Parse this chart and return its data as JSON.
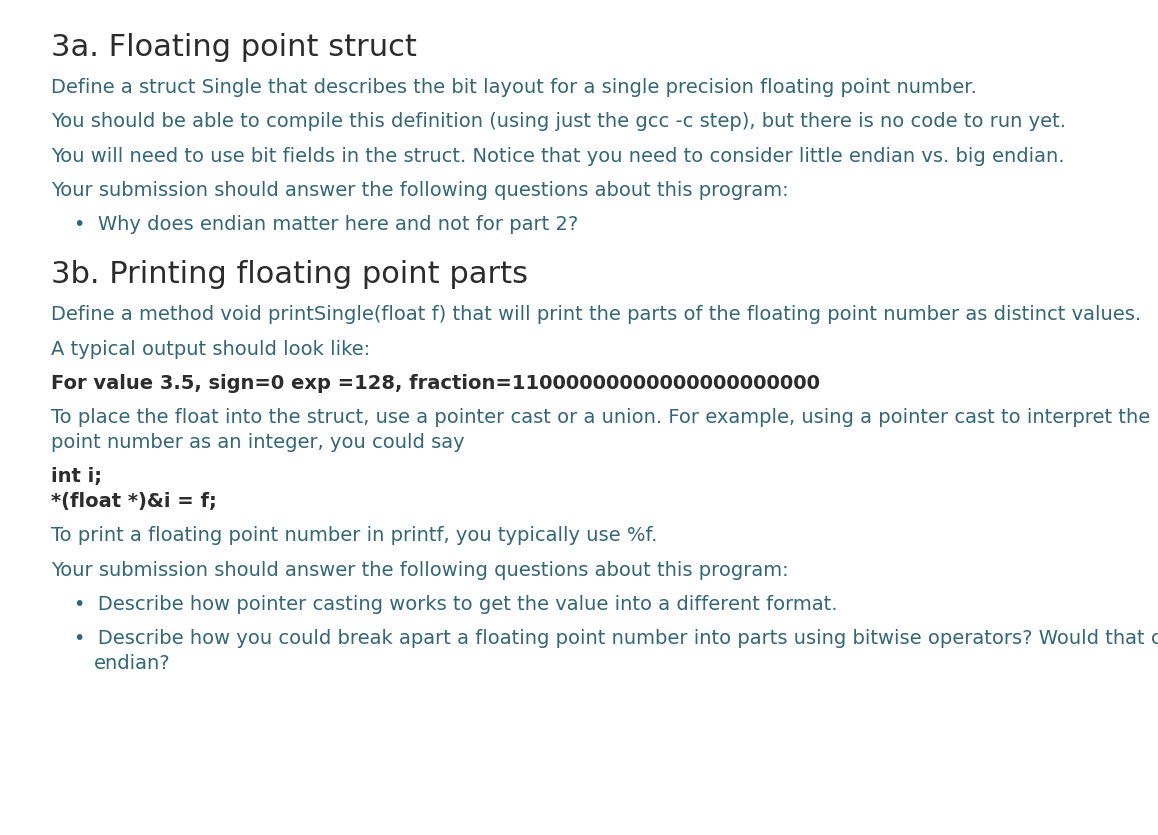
{
  "bg_color": "#ffffff",
  "title_color": "#2c2c2c",
  "body_color": "#336677",
  "bold_color": "#2c2c2c",
  "heading1": "3a. Floating point struct",
  "heading2": "3b. Printing floating point parts",
  "para1": "Define a struct Single that describes the bit layout for a single precision floating point number.",
  "para2": "You should be able to compile this definition (using just the gcc -c step), but there is no code to run yet.",
  "para3": "You will need to use bit fields in the struct. Notice that you need to consider little endian vs. big endian.",
  "para4": "Your submission should answer the following questions about this program:",
  "bullet1": "Why does endian matter here and not for part 2?",
  "para5": "Define a method void printSingle(float f) that will print the parts of the floating point number as distinct values.",
  "para6": "A typical output should look like:",
  "bold_line": "For value 3.5, sign=0 exp =128, fraction=11000000000000000000000",
  "code1": "int i;",
  "code2": "*(float *)&i = f;",
  "para7_line1": "To place the float into the struct, use a pointer cast or a union. For example, using a pointer cast to interpret the bits of a floating",
  "para7_line2": "point number as an integer, you could say",
  "para8": "To print a floating point number in printf, you typically use %f.",
  "para9": "Your submission should answer the following questions about this program:",
  "bullet2": "Describe how pointer casting works to get the value into a different format.",
  "bullet3a": "Describe how you could break apart a floating point number into parts using bitwise operators? Would that care about",
  "bullet3b": "endian?",
  "heading_fontsize": 22,
  "body_fontsize": 14,
  "bold_fontsize": 14,
  "code_fontsize": 14
}
